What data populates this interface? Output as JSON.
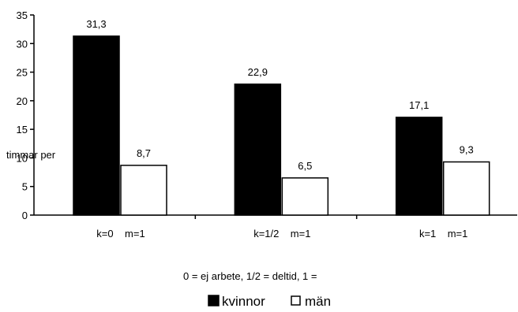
{
  "chart_data": {
    "type": "bar",
    "categories": [
      "k=0    m=1",
      "k=1/2    m=1",
      "k=1    m=1"
    ],
    "series": [
      {
        "name": "kvinnor",
        "values": [
          31.3,
          22.9,
          17.1
        ],
        "color": "#000000"
      },
      {
        "name": "män",
        "values": [
          8.7,
          6.5,
          9.3
        ],
        "color": "#ffffff"
      }
    ],
    "value_labels": [
      [
        "31,3",
        "22,9",
        "17,1"
      ],
      [
        "8,7",
        "6,5",
        "9,3"
      ]
    ],
    "ylabel": "timmar per",
    "xlabel": "0 = ej arbete, 1/2 = deltid,  1 =",
    "ylim": [
      0,
      35
    ],
    "yticks": [
      0,
      5,
      10,
      15,
      20,
      25,
      30,
      35
    ],
    "legend_position": "bottom-center",
    "grid": false
  }
}
